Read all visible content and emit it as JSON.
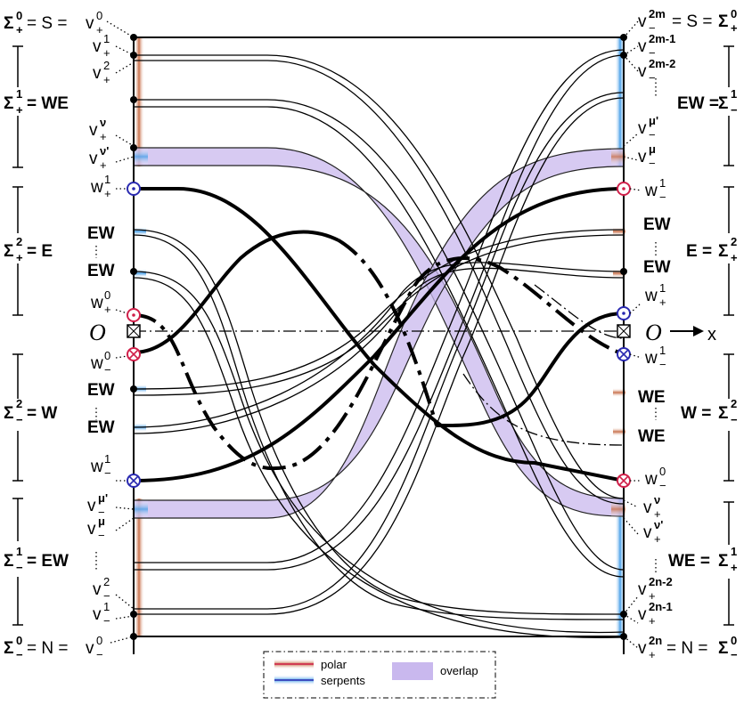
{
  "left_labels": {
    "sigma0_plus": {
      "base": "Σ",
      "sup": "0",
      "sub": "+",
      "eq1": "= S = ",
      "v": "v",
      "vsup": "0",
      "vsub": "+"
    },
    "v1_plus": {
      "v": "v",
      "sup": "1",
      "sub": "+"
    },
    "v2_plus": {
      "v": "v",
      "sup": "2",
      "sub": "+"
    },
    "sigma1_plus": {
      "base": "Σ",
      "sup": "1",
      "sub": "+",
      "eq": "= WE"
    },
    "vnu_plus": {
      "v": "v",
      "sup": "ν",
      "sub": "+"
    },
    "vnup_plus": {
      "v": "v",
      "sup": "ν'",
      "sub": "+"
    },
    "w1_plus": {
      "w": "w",
      "sup": "1",
      "sub": "+"
    },
    "ew_a": "EW",
    "sigma2_plus": {
      "base": "Σ",
      "sup": "2",
      "sub": "+",
      "eq": "= E"
    },
    "ew_b": "EW",
    "w0_plus": {
      "w": "w",
      "sup": "0",
      "sub": "+"
    },
    "origin": "O",
    "w0_minus": {
      "w": "w",
      "sup": "0",
      "sub": "−"
    },
    "ew_c": "EW",
    "sigma2_minus": {
      "base": "Σ",
      "sup": "2",
      "sub": "−",
      "eq": "= W"
    },
    "ew_d": "EW",
    "w1_minus": {
      "w": "w",
      "sup": "1",
      "sub": "−"
    },
    "vmup_minus": {
      "v": "v",
      "sup": "μ'",
      "sub": "−"
    },
    "vmu_minus": {
      "v": "v",
      "sup": "μ",
      "sub": "−"
    },
    "sigma1_minus": {
      "base": "Σ",
      "sup": "1",
      "sub": "−",
      "eq": "= EW"
    },
    "v2_minus": {
      "v": "v",
      "sup": "2",
      "sub": "−"
    },
    "v1_minus": {
      "v": "v",
      "sup": "1",
      "sub": "−"
    },
    "sigma0_minus": {
      "base": "Σ",
      "sup": "0",
      "sub": "−",
      "eq1": "= N = ",
      "v": "v",
      "vsup": "0",
      "vsub": "−"
    }
  },
  "right_labels": {
    "v2m": {
      "v": "v",
      "sup": "2m",
      "sub": "−",
      "eq": "= S = ",
      "base": "Σ",
      "bsup": "0",
      "bsub": "+"
    },
    "v2m1": {
      "v": "v",
      "sup": "2m-1",
      "sub": "−"
    },
    "v2m2": {
      "v": "v",
      "sup": "2m-2",
      "sub": "−"
    },
    "sigma1_minus": {
      "pre": "EW =",
      "base": "Σ",
      "sup": "1",
      "sub": "−"
    },
    "vmup": {
      "v": "v",
      "sup": "μ'",
      "sub": "−"
    },
    "vmu": {
      "v": "v",
      "sup": "μ",
      "sub": "−"
    },
    "w1_minus": {
      "w": "w",
      "sup": "1",
      "sub": "−"
    },
    "ew_a": "EW",
    "sigma2_plus": {
      "pre": "E =",
      "base": "Σ",
      "sup": "2",
      "sub": "+"
    },
    "ew_b": "EW",
    "w1_plus": {
      "w": "w",
      "sup": "1",
      "sub": "+"
    },
    "origin": "O",
    "x_axis": "x",
    "w1_minus_b": {
      "w": "w",
      "sup": "1",
      "sub": "−"
    },
    "we_a": "WE",
    "sigma2_minus": {
      "pre": "W =",
      "base": "Σ",
      "sup": "2",
      "sub": "−"
    },
    "we_b": "WE",
    "w0_minus": {
      "w": "w",
      "sup": "0",
      "sub": "−"
    },
    "vnu": {
      "v": "v",
      "sup": "ν",
      "sub": "+"
    },
    "vnup": {
      "v": "v",
      "sup": "ν'",
      "sub": "+"
    },
    "sigma1_plus": {
      "pre": "WE =",
      "base": "Σ",
      "sup": "1",
      "sub": "+"
    },
    "v2n2": {
      "v": "v",
      "sup": "2n-2",
      "sub": "+"
    },
    "v2n1": {
      "v": "v",
      "sup": "2n-1",
      "sub": "+"
    },
    "v2n": {
      "v": "v",
      "sup": "2n",
      "sub": "+",
      "eq": "= N = ",
      "base": "Σ",
      "bsup": "0",
      "bsub": "−"
    }
  },
  "legend": {
    "polar": "polar",
    "serpents": "serpents",
    "overlap": "overlap"
  },
  "colors": {
    "polar": "#c8704a",
    "serpents": "#4aa0e8",
    "overlap": "#c9b8ee",
    "red_marker": "#d0204a",
    "blue_marker": "#2a2ab0"
  }
}
